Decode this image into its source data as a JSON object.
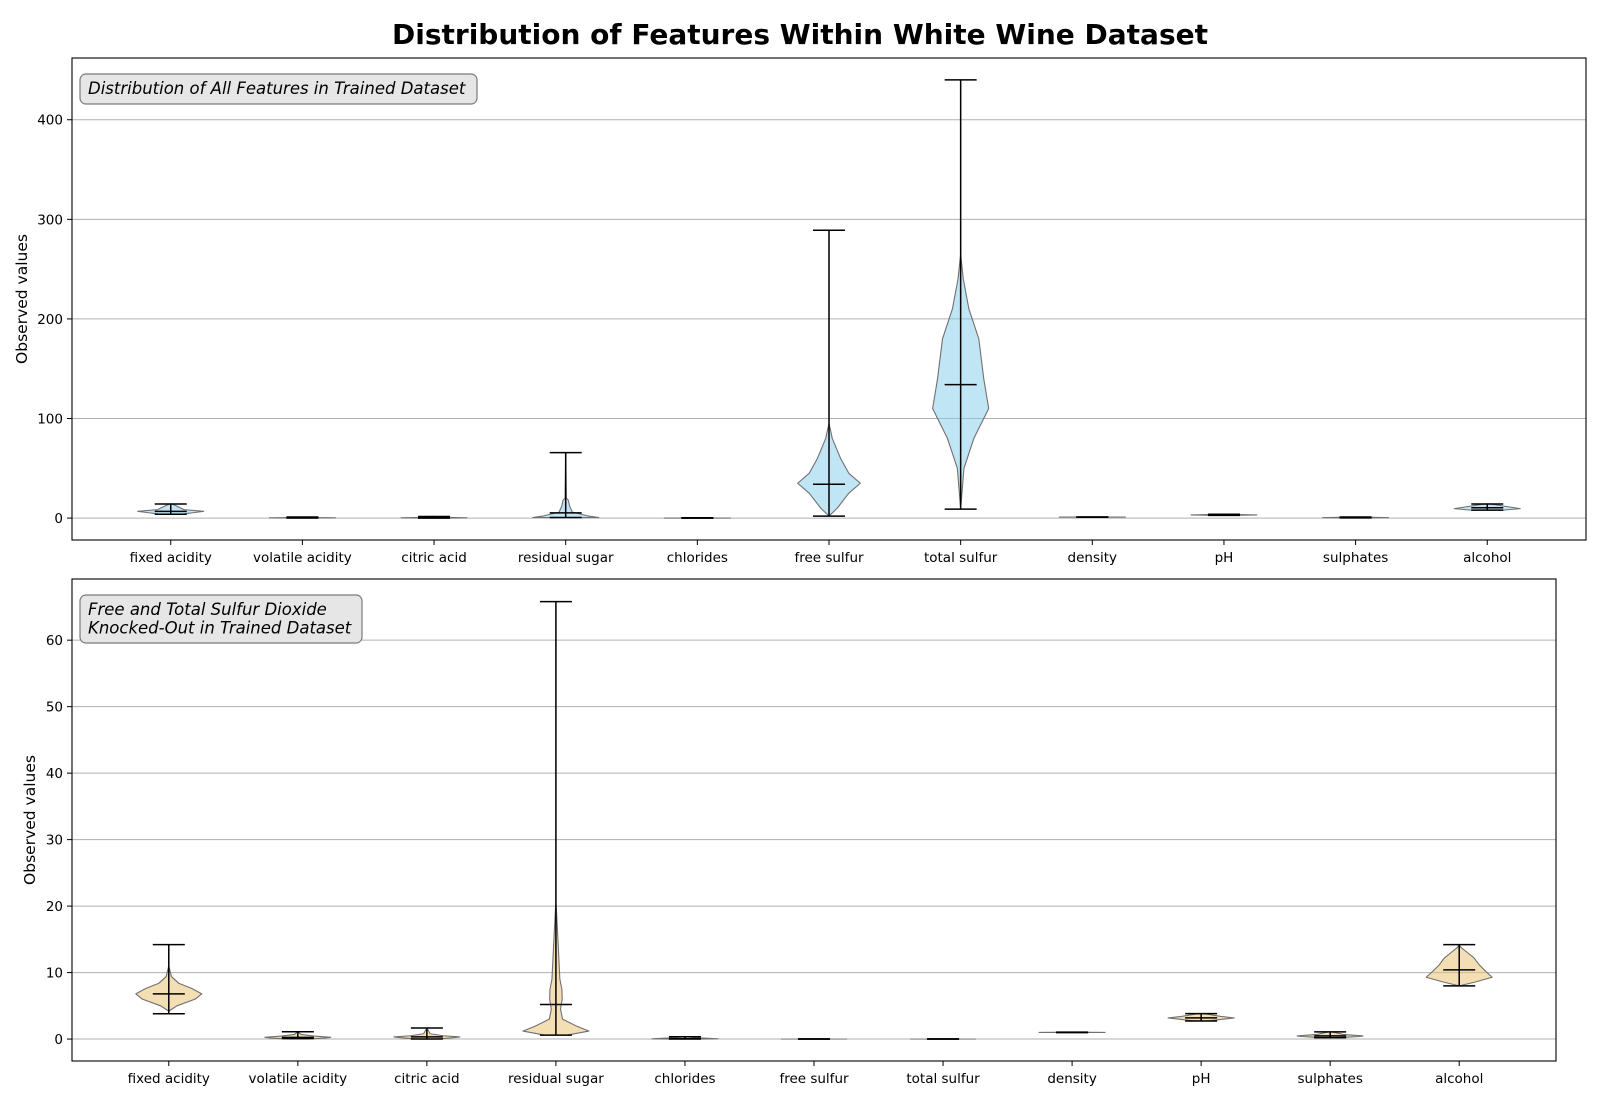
{
  "figure": {
    "title": "Distribution of Features Within White Wine Dataset"
  },
  "chart_data": [
    {
      "type": "violin",
      "annotation": [
        "Distribution of All Features in Trained Dataset"
      ],
      "xlabel": "",
      "ylabel": "Observed values",
      "ylim": [
        -22,
        462
      ],
      "yticks": [
        0,
        100,
        200,
        300,
        400
      ],
      "grid": "y",
      "color": "#87ceeb",
      "categories": [
        "fixed acidity",
        "volatile acidity",
        "citric acid",
        "residual sugar",
        "chlorides",
        "free sulfur",
        "total sulfur",
        "density",
        "pH",
        "sulphates",
        "alcohol"
      ],
      "stats": [
        {
          "min": 3.8,
          "max": 14.2,
          "median": 6.8
        },
        {
          "min": 0.08,
          "max": 1.1,
          "median": 0.26
        },
        {
          "min": 0.0,
          "max": 1.66,
          "median": 0.32
        },
        {
          "min": 0.6,
          "max": 65.8,
          "median": 5.2
        },
        {
          "min": 0.009,
          "max": 0.346,
          "median": 0.043
        },
        {
          "min": 2,
          "max": 289,
          "median": 34
        },
        {
          "min": 9,
          "max": 440,
          "median": 134
        },
        {
          "min": 0.987,
          "max": 1.039,
          "median": 0.994
        },
        {
          "min": 2.72,
          "max": 3.82,
          "median": 3.18
        },
        {
          "min": 0.22,
          "max": 1.08,
          "median": 0.47
        },
        {
          "min": 8.0,
          "max": 14.2,
          "median": 10.4
        }
      ],
      "densities": [
        [
          [
            3.8,
            0.3
          ],
          [
            5.5,
            0.7
          ],
          [
            6.8,
            1.0
          ],
          [
            8.5,
            0.4
          ],
          [
            14.2,
            0.05
          ]
        ],
        [
          [
            0.08,
            0.3
          ],
          [
            0.26,
            1.0
          ],
          [
            0.6,
            0.3
          ],
          [
            1.1,
            0.05
          ]
        ],
        [
          [
            0.0,
            0.3
          ],
          [
            0.32,
            1.0
          ],
          [
            0.8,
            0.2
          ],
          [
            1.66,
            0.05
          ]
        ],
        [
          [
            0.6,
            1.0
          ],
          [
            2,
            0.7
          ],
          [
            6,
            0.2
          ],
          [
            12,
            0.12
          ],
          [
            18,
            0.08
          ],
          [
            20,
            0.02
          ],
          [
            65.8,
            0.0
          ]
        ],
        [
          [
            0.009,
            0.5
          ],
          [
            0.043,
            1.0
          ],
          [
            0.2,
            0.2
          ],
          [
            0.346,
            0.05
          ]
        ],
        [
          [
            2,
            0.0
          ],
          [
            10,
            0.25
          ],
          [
            25,
            0.6
          ],
          [
            35,
            0.95
          ],
          [
            45,
            0.6
          ],
          [
            60,
            0.35
          ],
          [
            80,
            0.1
          ],
          [
            95,
            0.0
          ],
          [
            289,
            0.0
          ]
        ],
        [
          [
            9,
            0.0
          ],
          [
            50,
            0.1
          ],
          [
            80,
            0.4
          ],
          [
            110,
            0.85
          ],
          [
            140,
            0.7
          ],
          [
            180,
            0.55
          ],
          [
            210,
            0.25
          ],
          [
            240,
            0.08
          ],
          [
            265,
            0.0
          ],
          [
            440,
            0.0
          ]
        ],
        [
          [
            0.987,
            0.5
          ],
          [
            0.994,
            1.0
          ],
          [
            1.039,
            0.1
          ]
        ],
        [
          [
            2.72,
            0.3
          ],
          [
            3.18,
            1.0
          ],
          [
            3.82,
            0.1
          ]
        ],
        [
          [
            0.22,
            0.3
          ],
          [
            0.47,
            1.0
          ],
          [
            1.08,
            0.1
          ]
        ],
        [
          [
            8.0,
            0.5
          ],
          [
            9.5,
            1.0
          ],
          [
            11.5,
            0.6
          ],
          [
            14.2,
            0.1
          ]
        ]
      ]
    },
    {
      "type": "violin",
      "annotation": [
        "Free and Total Sulfur Dioxide",
        "Knocked-Out in Trained Dataset"
      ],
      "xlabel": "",
      "ylabel": "Observed values",
      "ylim": [
        -3.3,
        69.2
      ],
      "yticks": [
        0,
        10,
        20,
        30,
        40,
        50,
        60
      ],
      "grid": "y",
      "color": "#e8c26e",
      "categories": [
        "fixed acidity",
        "volatile acidity",
        "citric acid",
        "residual sugar",
        "chlorides",
        "free sulfur",
        "total sulfur",
        "density",
        "pH",
        "sulphates",
        "alcohol"
      ],
      "stats": [
        {
          "min": 3.8,
          "max": 14.2,
          "median": 6.8
        },
        {
          "min": 0.08,
          "max": 1.1,
          "median": 0.26
        },
        {
          "min": 0.0,
          "max": 1.66,
          "median": 0.32
        },
        {
          "min": 0.6,
          "max": 65.8,
          "median": 5.2
        },
        {
          "min": 0.009,
          "max": 0.346,
          "median": 0.043
        },
        {
          "min": 0.0,
          "max": 0.0,
          "median": 0.0
        },
        {
          "min": 0.0,
          "max": 0.0,
          "median": 0.0
        },
        {
          "min": 0.987,
          "max": 1.039,
          "median": 0.994
        },
        {
          "min": 2.72,
          "max": 3.82,
          "median": 3.18
        },
        {
          "min": 0.22,
          "max": 1.08,
          "median": 0.47
        },
        {
          "min": 8.0,
          "max": 14.2,
          "median": 10.4
        }
      ],
      "densities": [
        [
          [
            4.2,
            0.0
          ],
          [
            5.0,
            0.25
          ],
          [
            6.0,
            0.8
          ],
          [
            6.8,
            1.0
          ],
          [
            7.6,
            0.7
          ],
          [
            8.4,
            0.3
          ],
          [
            9.4,
            0.08
          ],
          [
            11,
            0.0
          ],
          [
            14.2,
            0.0
          ]
        ],
        [
          [
            0.0,
            0.3
          ],
          [
            0.15,
            0.8
          ],
          [
            0.26,
            1.0
          ],
          [
            0.45,
            0.5
          ],
          [
            0.7,
            0.1
          ],
          [
            1.1,
            0.0
          ]
        ],
        [
          [
            0.0,
            0.3
          ],
          [
            0.2,
            0.8
          ],
          [
            0.32,
            1.0
          ],
          [
            0.5,
            0.5
          ],
          [
            0.8,
            0.1
          ],
          [
            1.66,
            0.0
          ]
        ],
        [
          [
            0.6,
            0.35
          ],
          [
            1.2,
            1.0
          ],
          [
            2.0,
            0.6
          ],
          [
            3.0,
            0.2
          ],
          [
            4.5,
            0.14
          ],
          [
            6.0,
            0.19
          ],
          [
            7.5,
            0.18
          ],
          [
            9.0,
            0.12
          ],
          [
            11.0,
            0.1
          ],
          [
            13.0,
            0.08
          ],
          [
            15.0,
            0.06
          ],
          [
            17.0,
            0.04
          ],
          [
            19.0,
            0.02
          ],
          [
            20.5,
            0.0
          ],
          [
            65.8,
            0.0
          ]
        ],
        [
          [
            0.0,
            0.5
          ],
          [
            0.043,
            1.0
          ],
          [
            0.2,
            0.3
          ],
          [
            0.346,
            0.05
          ]
        ],
        [
          [
            0.0,
            1.0
          ]
        ],
        [
          [
            0.0,
            1.0
          ]
        ],
        [
          [
            0.987,
            0.5
          ],
          [
            0.994,
            1.0
          ],
          [
            1.039,
            0.2
          ]
        ],
        [
          [
            2.72,
            0.2
          ],
          [
            2.95,
            0.6
          ],
          [
            3.18,
            1.0
          ],
          [
            3.4,
            0.6
          ],
          [
            3.82,
            0.1
          ]
        ],
        [
          [
            0.22,
            0.3
          ],
          [
            0.4,
            0.9
          ],
          [
            0.47,
            1.0
          ],
          [
            0.7,
            0.4
          ],
          [
            1.08,
            0.05
          ]
        ],
        [
          [
            8.0,
            0.0
          ],
          [
            8.6,
            0.5
          ],
          [
            9.3,
            1.0
          ],
          [
            10.2,
            0.8
          ],
          [
            11.2,
            0.6
          ],
          [
            12.2,
            0.45
          ],
          [
            13.0,
            0.25
          ],
          [
            13.8,
            0.05
          ],
          [
            14.2,
            0.0
          ]
        ]
      ]
    }
  ]
}
